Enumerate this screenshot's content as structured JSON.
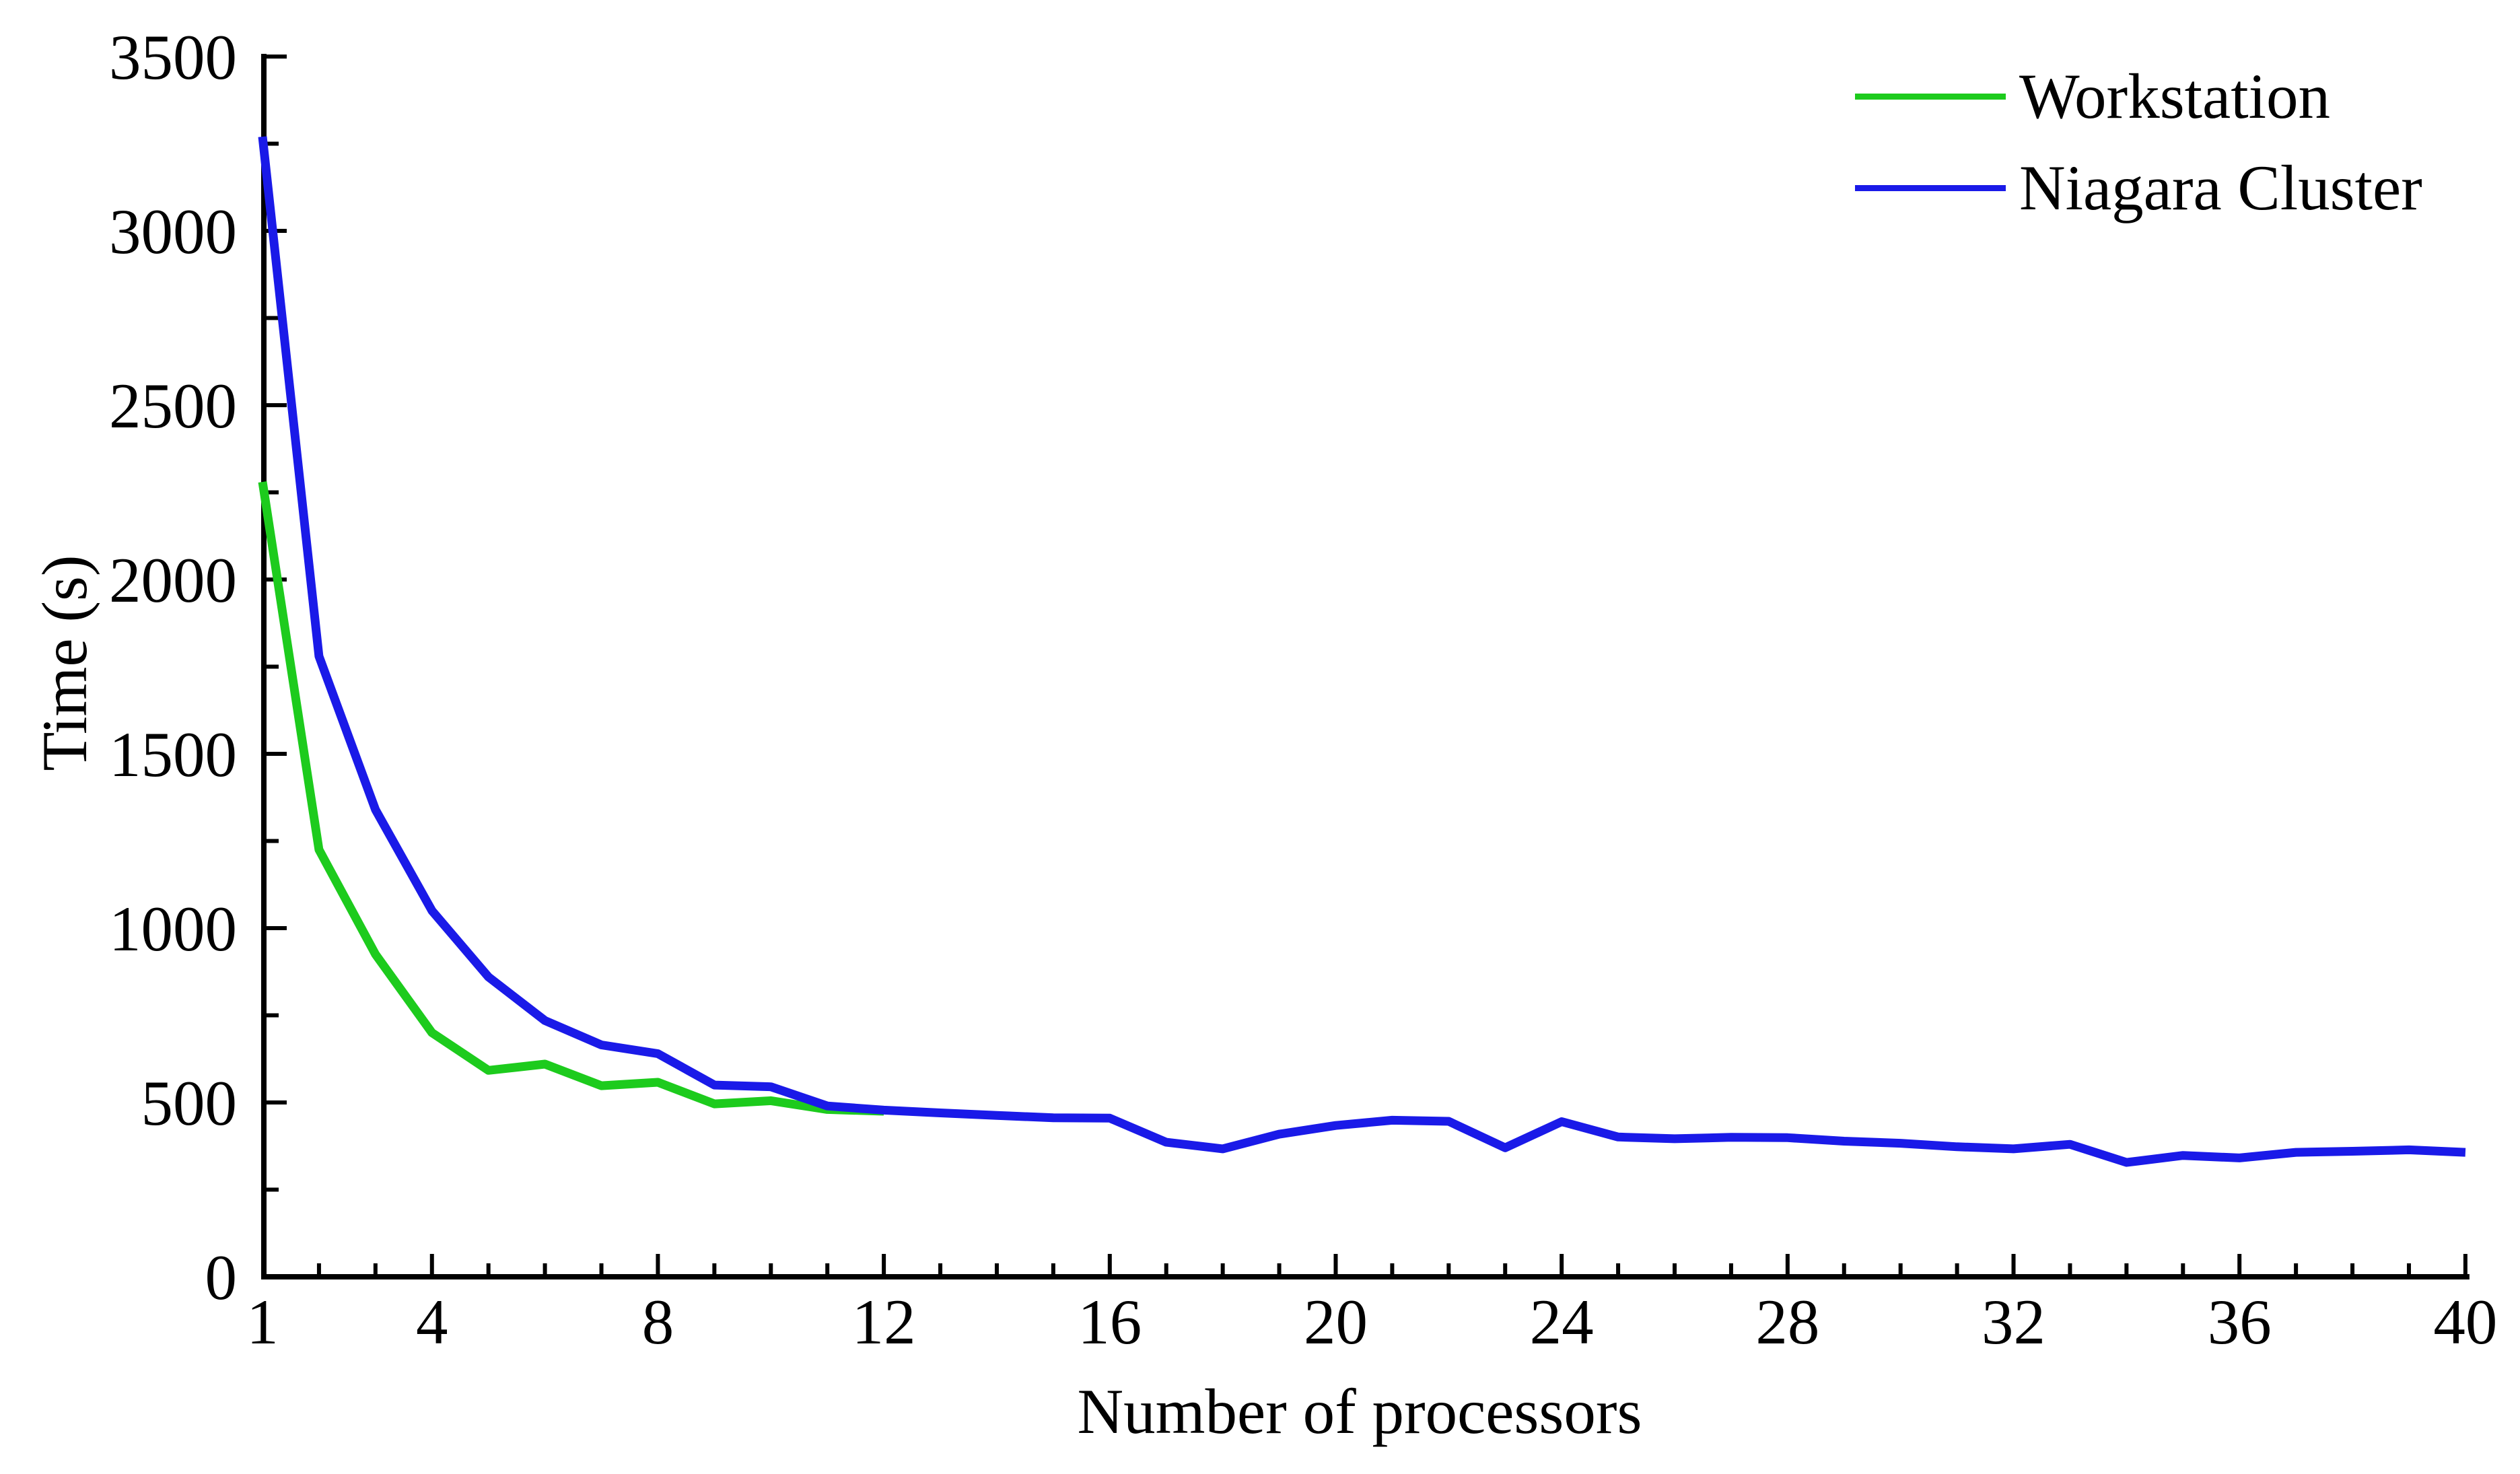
{
  "chart_data": {
    "type": "line",
    "xlabel": "Number of processors",
    "ylabel": "Time (s)",
    "xlim": [
      1,
      40
    ],
    "ylim": [
      0,
      3500
    ],
    "x_major_ticks": [
      1,
      4,
      8,
      12,
      16,
      20,
      24,
      28,
      32,
      36,
      40
    ],
    "x_minor_step": 1,
    "y_major_ticks": [
      0,
      500,
      1000,
      1500,
      2000,
      2500,
      3000,
      3500
    ],
    "y_minor_step": 250,
    "grid": false,
    "legend_position": "top-right",
    "background_color": "#ffffff",
    "axis_color": "#000000",
    "series": [
      {
        "name": "Workstation",
        "color": "#1dcb1d",
        "x": [
          1,
          2,
          3,
          4,
          5,
          6,
          7,
          8,
          9,
          10,
          11,
          12
        ],
        "values": [
          2280,
          1225,
          925,
          700,
          592,
          610,
          548,
          558,
          496,
          505,
          480,
          475
        ]
      },
      {
        "name": "Niagara Cluster",
        "color": "#1a1ae8",
        "x": [
          1,
          2,
          3,
          4,
          5,
          6,
          7,
          8,
          9,
          10,
          11,
          12,
          13,
          14,
          15,
          16,
          17,
          18,
          19,
          20,
          21,
          22,
          23,
          24,
          25,
          26,
          27,
          28,
          29,
          30,
          31,
          32,
          33,
          34,
          35,
          36,
          37,
          38,
          39,
          40
        ],
        "values": [
          3270,
          1780,
          1340,
          1050,
          860,
          735,
          665,
          640,
          550,
          545,
          490,
          478,
          470,
          463,
          456,
          455,
          386,
          367,
          409,
          434,
          449,
          446,
          370,
          445,
          401,
          396,
          400,
          399,
          389,
          383,
          373,
          367,
          380,
          328,
          348,
          341,
          357,
          360,
          364,
          357
        ]
      }
    ]
  }
}
